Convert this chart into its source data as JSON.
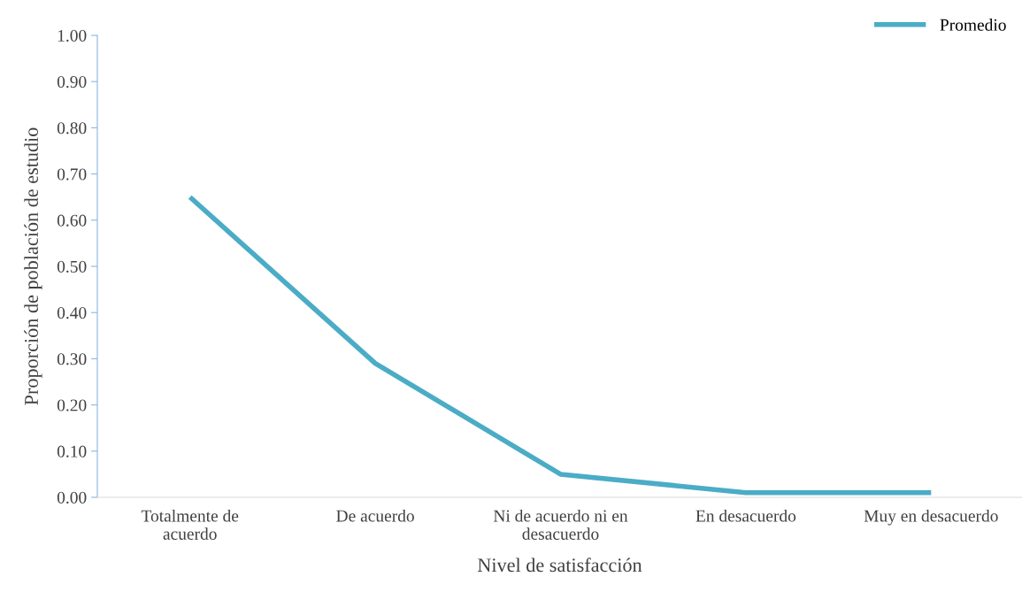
{
  "chart_data": {
    "type": "line",
    "xlabel": "Nivel de satisfacción",
    "ylabel": "Proporción de población de estudio",
    "categories": [
      "Totalmente de\nacuerdo",
      "De acuerdo",
      "Ni de acuerdo ni en\ndesacuerdo",
      "En desacuerdo",
      "Muy en desacuerdo"
    ],
    "series": [
      {
        "name": "Promedio",
        "color": "#4bacc6",
        "values": [
          0.65,
          0.29,
          0.05,
          0.01,
          0.01
        ]
      }
    ],
    "ylim": [
      0,
      1
    ],
    "yticks": [
      {
        "value": 0,
        "label": "0.00"
      },
      {
        "value": 0.1,
        "label": "0.10"
      },
      {
        "value": 0.2,
        "label": "0.20"
      },
      {
        "value": 0.3,
        "label": "0.30"
      },
      {
        "value": 0.4,
        "label": "0.40"
      },
      {
        "value": 0.5,
        "label": "0.50"
      },
      {
        "value": 0.6,
        "label": "0.60"
      },
      {
        "value": 0.7,
        "label": "0.70"
      },
      {
        "value": 0.8,
        "label": "0.80"
      },
      {
        "value": 0.9,
        "label": "0.90"
      },
      {
        "value": 1,
        "label": "1.00"
      }
    ],
    "grid": false,
    "legend": "top right",
    "marker": "none",
    "line_style": "solid"
  }
}
